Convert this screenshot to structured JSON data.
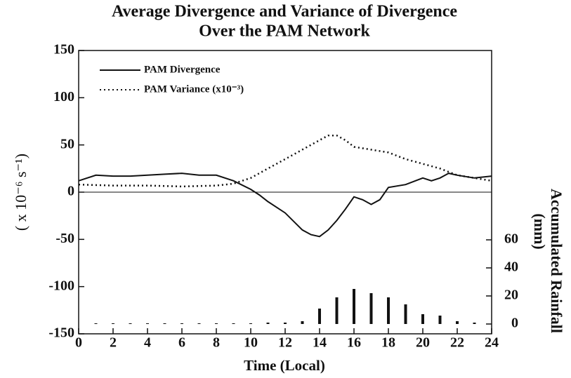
{
  "chart_data": {
    "type": "line",
    "title": "Average Divergence and Variance of Divergence",
    "subtitle": "Over the PAM Network",
    "xlabel": "Time (Local)",
    "ylabel": "( x 10⁻⁶ s⁻¹)",
    "y2label": [
      "Accumulated Rainfall",
      "(mm)"
    ],
    "xlim": [
      0,
      24
    ],
    "xticks": [
      0,
      2,
      4,
      6,
      8,
      10,
      12,
      14,
      16,
      18,
      20,
      22,
      24
    ],
    "ylim": [
      -150,
      150
    ],
    "yticks": [
      -150,
      -100,
      -50,
      0,
      50,
      100,
      150
    ],
    "y2lim": [
      -7,
      195
    ],
    "y2ticks": [
      0,
      20,
      40,
      60
    ],
    "legend": "upper left",
    "series": [
      {
        "name": "PAM Divergence",
        "color": "#111111",
        "style": "solid",
        "x": [
          0,
          1,
          2,
          3,
          4,
          5,
          6,
          7,
          8,
          9,
          10,
          10.5,
          11,
          12,
          13,
          13.5,
          14,
          14.5,
          15,
          15.5,
          16,
          16.5,
          17,
          17.5,
          18,
          19,
          20,
          20.5,
          21,
          21.5,
          22,
          23,
          24
        ],
        "values": [
          12,
          18,
          17,
          17,
          18,
          19,
          20,
          18,
          18,
          12,
          3,
          -3,
          -10,
          -22,
          -40,
          -45,
          -47,
          -40,
          -30,
          -18,
          -5,
          -8,
          -13,
          -8,
          5,
          8,
          15,
          12,
          15,
          20,
          18,
          15,
          17
        ]
      },
      {
        "name": "PAM Variance (x10⁻³)",
        "color": "#111111",
        "style": "dotted",
        "x": [
          0,
          2,
          4,
          6,
          8,
          9,
          10,
          11,
          12,
          13,
          14,
          14.5,
          15,
          15.5,
          16,
          17,
          18,
          19,
          20,
          21,
          22,
          23,
          24
        ],
        "values": [
          8,
          7,
          7,
          6,
          7,
          9,
          15,
          25,
          35,
          45,
          55,
          60,
          60,
          55,
          48,
          45,
          42,
          35,
          30,
          25,
          18,
          15,
          12
        ]
      },
      {
        "name": "Accumulated Rainfall",
        "type": "bar",
        "axis": "y2",
        "color": "#111111",
        "x": [
          1,
          2,
          3,
          4,
          5,
          6,
          7,
          8,
          9,
          10,
          11,
          12,
          13,
          14,
          15,
          16,
          17,
          18,
          19,
          20,
          21,
          22,
          23
        ],
        "values": [
          0.5,
          0.5,
          0.5,
          0.5,
          0.5,
          0.5,
          0.5,
          0.5,
          0.5,
          0.5,
          1,
          1,
          2,
          11,
          19,
          25,
          22,
          19,
          14,
          7,
          6,
          2,
          1
        ]
      }
    ]
  }
}
